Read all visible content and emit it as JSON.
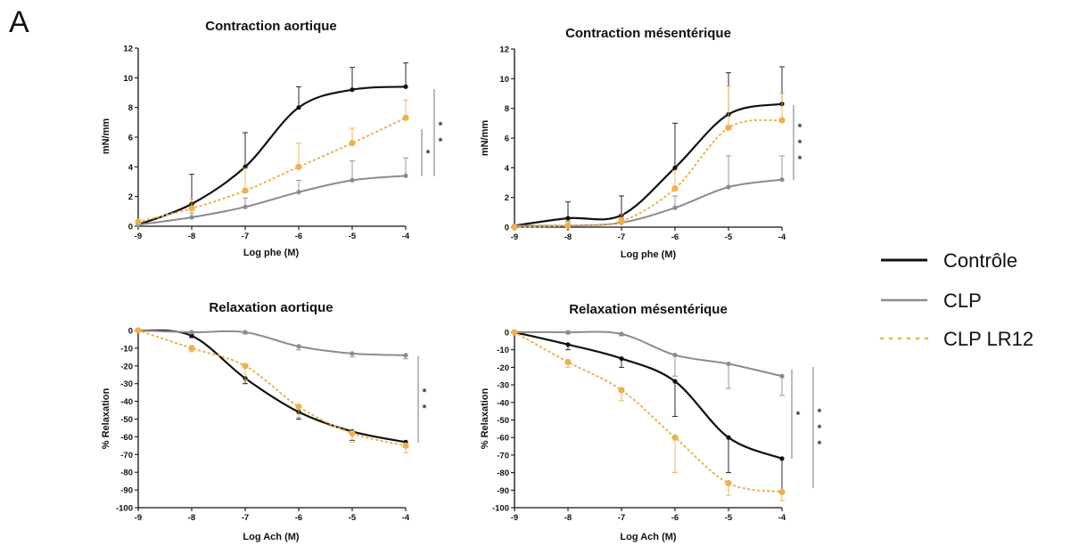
{
  "panel_letter": "A",
  "legend": [
    {
      "label": "Contrôle",
      "color": "#111111",
      "dash": "solid"
    },
    {
      "label": "CLP",
      "color": "#8c8c8c",
      "dash": "solid"
    },
    {
      "label": "CLP LR12",
      "color": "#f0b050",
      "dash": "dotted"
    }
  ],
  "chart_data": [
    {
      "type": "line",
      "title": "Contraction aortique",
      "xlabel": "Log phe (M)",
      "ylabel": "mN/mm",
      "xlim": [
        -9,
        -4
      ],
      "ylim": [
        0,
        12
      ],
      "xticks": [
        "-9",
        "-8",
        "-7",
        "-6",
        "-5",
        "-4"
      ],
      "yticks": [
        "0",
        "2",
        "4",
        "6",
        "8",
        "10",
        "12"
      ],
      "x": [
        -9,
        -8,
        -7,
        -6,
        -5,
        -4
      ],
      "series": [
        {
          "name": "Contrôle",
          "values": [
            0.1,
            1.5,
            4.0,
            8.0,
            9.2,
            9.4
          ],
          "err": [
            0,
            2.0,
            2.3,
            1.4,
            1.5,
            1.6
          ]
        },
        {
          "name": "CLP",
          "values": [
            0.1,
            0.6,
            1.3,
            2.3,
            3.1,
            3.4
          ],
          "err": [
            0,
            0.3,
            0.6,
            0.8,
            1.3,
            1.2
          ]
        },
        {
          "name": "CLP LR12",
          "values": [
            0.3,
            1.2,
            2.4,
            4.0,
            5.6,
            7.3
          ],
          "err": [
            0,
            0.6,
            1.5,
            1.6,
            1.0,
            1.2
          ]
        }
      ],
      "significance": [
        "*",
        "*",
        "*"
      ]
    },
    {
      "type": "line",
      "title": "Contraction mésentérique",
      "xlabel": "Log phe (M)",
      "ylabel": "mN/mm",
      "xlim": [
        -9,
        -4
      ],
      "ylim": [
        0,
        12
      ],
      "xticks": [
        "-9",
        "-8",
        "-7",
        "-6",
        "-5",
        "-4"
      ],
      "yticks": [
        "0",
        "2",
        "4",
        "6",
        "8",
        "10",
        "12"
      ],
      "x": [
        -9,
        -8,
        -7,
        -6,
        -5,
        -4
      ],
      "series": [
        {
          "name": "Contrôle",
          "values": [
            0.1,
            0.6,
            0.8,
            4.0,
            7.6,
            8.3
          ],
          "err": [
            0,
            1.1,
            1.3,
            3.0,
            2.8,
            2.5
          ]
        },
        {
          "name": "CLP",
          "values": [
            0.1,
            0.1,
            0.3,
            1.3,
            2.7,
            3.2
          ],
          "err": [
            0,
            0.3,
            0.3,
            0.8,
            2.1,
            1.6
          ]
        },
        {
          "name": "CLP LR12",
          "values": [
            0.0,
            0.1,
            0.4,
            2.6,
            6.7,
            7.2
          ],
          "err": [
            0,
            0.2,
            0.5,
            1.2,
            2.8,
            1.8
          ]
        }
      ],
      "significance": [
        "*",
        "*",
        "*"
      ]
    },
    {
      "type": "line",
      "title": "Relaxation aortique",
      "xlabel": "Log Ach (M)",
      "ylabel": "% Relaxation",
      "xlim": [
        -9,
        -4
      ],
      "ylim": [
        -100,
        0
      ],
      "xticks": [
        "-9",
        "-8",
        "-7",
        "-6",
        "-5",
        "-4"
      ],
      "yticks": [
        "0",
        "-10",
        "-20",
        "-30",
        "-40",
        "-50",
        "-60",
        "-70",
        "-80",
        "-90",
        "-100"
      ],
      "x": [
        -9,
        -8,
        -7,
        -6,
        -5,
        -4
      ],
      "series": [
        {
          "name": "Contrôle",
          "values": [
            0,
            -3,
            -27,
            -46,
            -57,
            -63
          ],
          "err": [
            0,
            1,
            3,
            4,
            5,
            3
          ]
        },
        {
          "name": "CLP",
          "values": [
            0,
            -1,
            -1,
            -9,
            -13,
            -14
          ],
          "err": [
            0,
            1,
            1,
            2,
            2,
            2
          ]
        },
        {
          "name": "CLP LR12",
          "values": [
            0,
            -10,
            -20,
            -43,
            -58,
            -65
          ],
          "err": [
            0,
            2,
            8,
            6,
            5,
            4
          ]
        }
      ],
      "significance": [
        "*",
        "*"
      ]
    },
    {
      "type": "line",
      "title": "Relaxation mésentérique",
      "xlabel": "Log Ach (M)",
      "ylabel": "% Relaxation",
      "xlim": [
        -9,
        -4
      ],
      "ylim": [
        -100,
        0
      ],
      "xticks": [
        "-9",
        "-8",
        "-7",
        "-6",
        "-5",
        "-4"
      ],
      "yticks": [
        "0",
        "-10",
        "-20",
        "-30",
        "-40",
        "-50",
        "-60",
        "-70",
        "-80",
        "-90",
        "-100"
      ],
      "x": [
        -9,
        -8,
        -7,
        -6,
        -5,
        -4
      ],
      "series": [
        {
          "name": "Contrôle",
          "values": [
            0,
            -7,
            -15,
            -28,
            -60,
            -72
          ],
          "err": [
            0,
            3,
            5,
            20,
            20,
            19
          ]
        },
        {
          "name": "CLP",
          "values": [
            0,
            0,
            -1,
            -13,
            -18,
            -25
          ],
          "err": [
            0,
            1,
            1,
            12,
            14,
            11
          ]
        },
        {
          "name": "CLP LR12",
          "values": [
            0,
            -17,
            -33,
            -60,
            -86,
            -91
          ],
          "err": [
            0,
            3,
            6,
            20,
            7,
            5
          ]
        }
      ],
      "significance": [
        "*",
        "*",
        "*",
        "*"
      ]
    }
  ]
}
